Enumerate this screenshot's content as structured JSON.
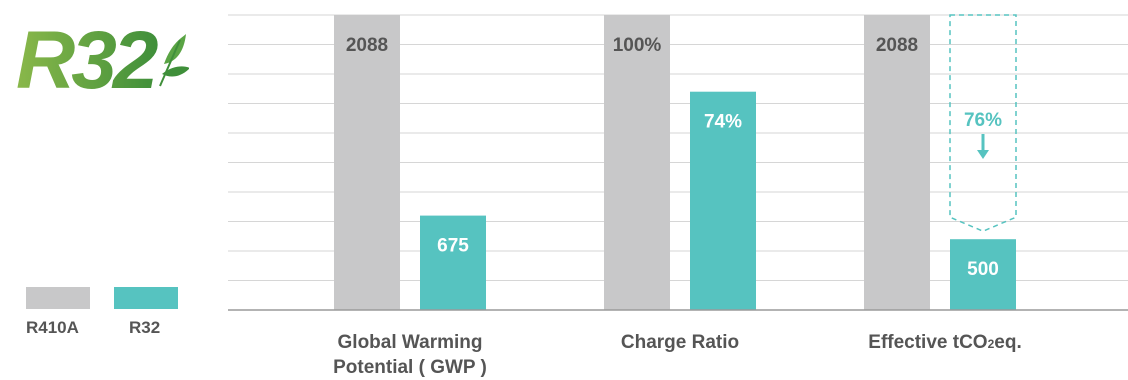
{
  "logo": {
    "text": "R32",
    "icon": "leaf-icon"
  },
  "colors": {
    "r410a": "#c8c8c9",
    "r32": "#56c3c0",
    "grid": "#d6d6d6",
    "axis": "#9a9a9a",
    "text": "#555555"
  },
  "legend": [
    {
      "label": "R410A",
      "color": "#c8c8c9"
    },
    {
      "label": "R32",
      "color": "#56c3c0"
    }
  ],
  "chart_data": {
    "type": "bar",
    "categories": [
      "Global Warming Potential ( GWP )",
      "Charge Ratio",
      "Effective tCO2eq."
    ],
    "series": [
      {
        "name": "R410A",
        "values": [
          100,
          100,
          100
        ],
        "labels": [
          "2088",
          "100%",
          "2088"
        ]
      },
      {
        "name": "R32",
        "values": [
          32,
          74,
          24
        ],
        "labels": [
          "675",
          "74%",
          "500"
        ]
      }
    ],
    "annotation": {
      "category": "Effective tCO2eq.",
      "text": "76%",
      "from": 100,
      "to": 24,
      "style": "dashed-outline-arrow"
    },
    "ylim": [
      0,
      100
    ],
    "grid": true,
    "legend_position": "bottom-left"
  },
  "category_lines": [
    [
      "Global Warming",
      "Potential ( GWP )"
    ],
    [
      "Charge Ratio"
    ],
    [
      "Effective tCO",
      "2",
      "eq."
    ]
  ]
}
